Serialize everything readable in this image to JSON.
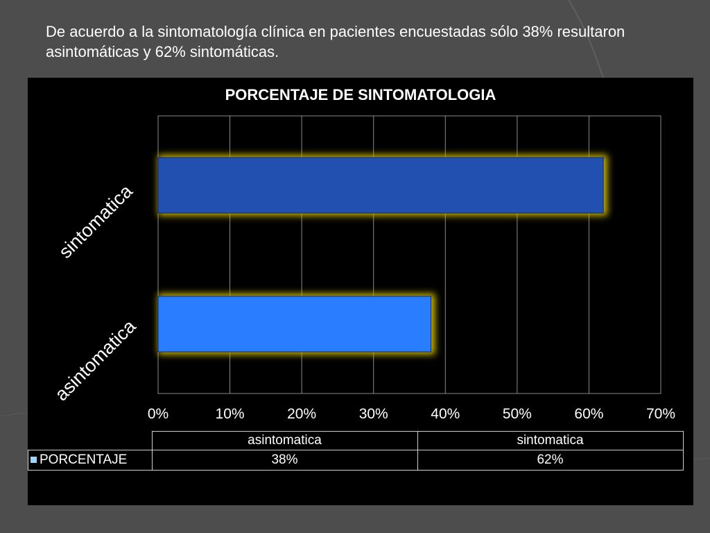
{
  "caption": "De acuerdo a la sintomatología clínica en pacientes encuestadas sólo 38% resultaron asintomáticas y 62% sintomáticas.",
  "colors": {
    "background": "#4d4d4d",
    "chart_bg": "#000000",
    "bar_sintomatica": "#2150b0",
    "bar_asintomatica": "#2a7dff",
    "glow": "#c8b400",
    "grid": "#8a8a8a"
  },
  "chart_data": {
    "type": "bar",
    "orientation": "horizontal",
    "title": "PORCENTAJE DE SINTOMATOLOGIA",
    "categories": [
      "asintomatica",
      "sintomatica"
    ],
    "series": [
      {
        "name": "PORCENTAJE",
        "values": [
          0.38,
          0.62
        ]
      }
    ],
    "xlim": [
      0,
      0.7
    ],
    "xticks": [
      "0%",
      "10%",
      "20%",
      "30%",
      "40%",
      "50%",
      "60%",
      "70%"
    ],
    "grid": true,
    "data_table": {
      "headers": [
        "asintomatica",
        "sintomatica"
      ],
      "row_label": "PORCENTAJE",
      "values": [
        "38%",
        "62%"
      ]
    }
  }
}
